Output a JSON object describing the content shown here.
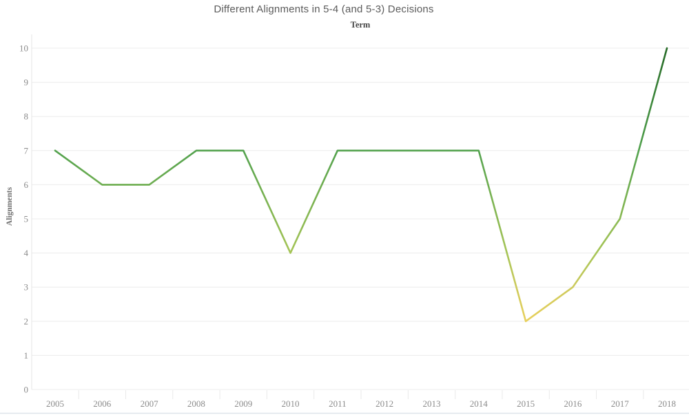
{
  "page": {
    "background": "#ffffff"
  },
  "chart_data": {
    "type": "line",
    "title": "Different Alignments in 5-4 (and 5-3) Decisions",
    "x_axis_title": "Term",
    "y_axis_title": "Alignments",
    "categories": [
      "2005",
      "2006",
      "2007",
      "2008",
      "2009",
      "2010",
      "2011",
      "2012",
      "2013",
      "2014",
      "2015",
      "2016",
      "2017",
      "2018"
    ],
    "values": [
      7,
      6,
      6,
      7,
      7,
      4,
      7,
      7,
      7,
      7,
      2,
      3,
      5,
      10
    ],
    "ylim": [
      0,
      10
    ],
    "yticks": [
      0,
      1,
      2,
      3,
      4,
      5,
      6,
      7,
      8,
      9,
      10
    ],
    "grid": "horizontal",
    "legend": "none",
    "line_color_encoding": "value: yellow = low, dark green = high",
    "gradient_stops": [
      {
        "value": 0,
        "color": "#f0cc4e"
      },
      {
        "value": 2,
        "color": "#e8d05c"
      },
      {
        "value": 3,
        "color": "#cdca5c"
      },
      {
        "value": 4,
        "color": "#a6c557"
      },
      {
        "value": 7,
        "color": "#53a24e"
      },
      {
        "value": 10,
        "color": "#276b28"
      }
    ],
    "colors": {
      "gridline": "#ececec",
      "axis_line": "#e4e4e4",
      "category_tick": "#e9e9e9",
      "tick_label": "#8b8b8b",
      "title_text": "#5b5b5b",
      "axis_title_text": "#454545",
      "bottom_border": "#dee4ea"
    }
  }
}
